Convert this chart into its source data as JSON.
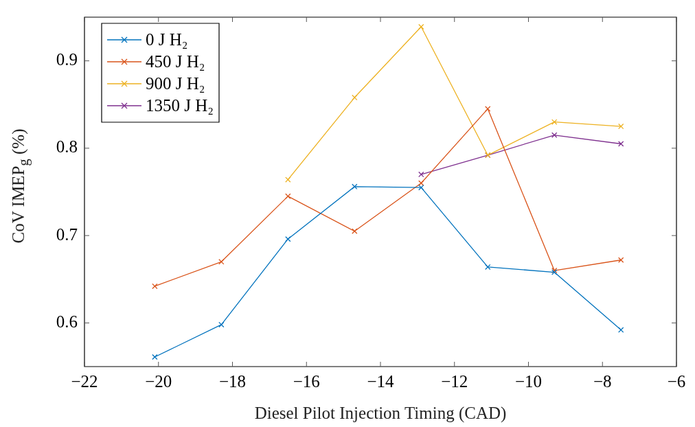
{
  "chart_data": {
    "type": "line",
    "xlabel": "Diesel Pilot Injection Timing (CAD)",
    "ylabel": "CoV IMEP$_{g}$ (%)",
    "xlim": [
      -22,
      -6
    ],
    "xticks": [
      -22,
      -20,
      -18,
      -16,
      -14,
      -12,
      -10,
      -8,
      -6
    ],
    "ylim": [
      0.55,
      0.95
    ],
    "yticks": [
      0.6,
      0.7,
      0.8,
      0.9
    ],
    "grid": false,
    "legend": "top left",
    "marker": "cross",
    "line_style": "solid",
    "series": [
      {
        "name": "0 J H₂",
        "color": "#0072bd",
        "x": [
          -20.1,
          -18.3,
          -16.5,
          -14.7,
          -12.9,
          -11.1,
          -9.3,
          -7.5
        ],
        "values": [
          0.561,
          0.598,
          0.696,
          0.756,
          0.755,
          0.664,
          0.658,
          0.592
        ]
      },
      {
        "name": "450 J H₂",
        "color": "#d95319",
        "x": [
          -20.1,
          -18.3,
          -16.5,
          -14.7,
          -12.9,
          -11.1,
          -9.3,
          -7.5
        ],
        "values": [
          0.642,
          0.67,
          0.745,
          0.705,
          0.76,
          0.845,
          0.66,
          0.672
        ]
      },
      {
        "name": "900 J H₂",
        "color": "#edb120",
        "x": [
          -16.5,
          -14.7,
          -12.9,
          -11.1,
          -9.3,
          -7.5
        ],
        "values": [
          0.764,
          0.858,
          0.939,
          0.792,
          0.83,
          0.825
        ]
      },
      {
        "name": "1350 J H₂",
        "color": "#7e2f8e",
        "x": [
          -12.9,
          -11.1,
          -9.3,
          -7.5
        ],
        "values": [
          0.77,
          0.792,
          0.815,
          0.805
        ]
      }
    ]
  }
}
